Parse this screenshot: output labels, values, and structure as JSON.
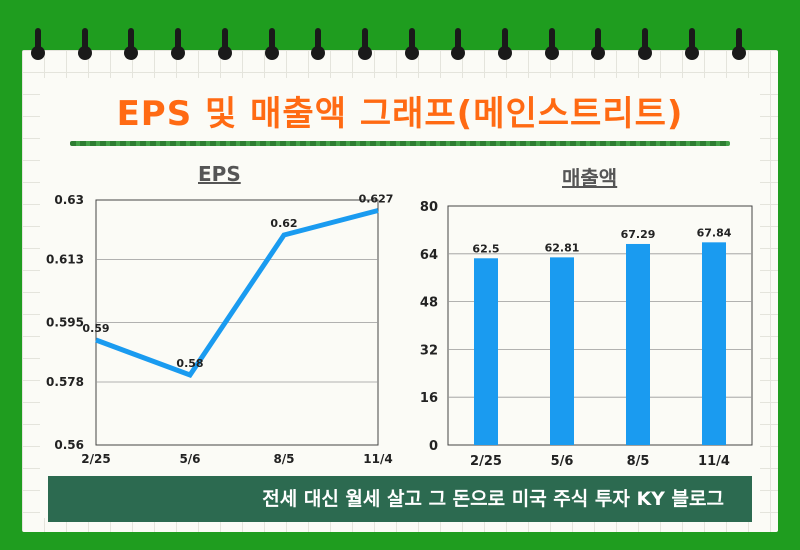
{
  "header": {
    "title": "EPS 및 매출액 그래프(메인스트리트)"
  },
  "footer": {
    "text": "전세 대신 월세 살고 그 돈으로 미국 주식 투자 KY 블로그"
  },
  "colors": {
    "frame": "#1f9d1f",
    "title": "#ff6a13",
    "series": "#1a9bf0",
    "footer_bg": "#2c6a50"
  },
  "chart_data": [
    {
      "type": "line",
      "title": "EPS",
      "categories": [
        "2/25",
        "5/6",
        "8/5",
        "11/4"
      ],
      "series": [
        {
          "values": [
            0.59,
            0.58,
            0.62,
            0.627
          ]
        }
      ],
      "data_labels": [
        "0.59",
        "0.58",
        "0.62",
        "0.627"
      ],
      "yticks": [
        "0.56",
        "0.578",
        "0.595",
        "0.613",
        "0.63"
      ],
      "ylim": [
        0.56,
        0.63
      ],
      "grid": true
    },
    {
      "type": "bar",
      "title": "매출액",
      "categories": [
        "2/25",
        "5/6",
        "8/5",
        "11/4"
      ],
      "series": [
        {
          "values": [
            62.5,
            62.81,
            67.29,
            67.84
          ]
        }
      ],
      "data_labels": [
        "62.5",
        "62.81",
        "67.29",
        "67.84"
      ],
      "yticks": [
        "0",
        "16",
        "32",
        "48",
        "64",
        "80"
      ],
      "ylim": [
        0,
        80
      ],
      "grid": true
    }
  ]
}
